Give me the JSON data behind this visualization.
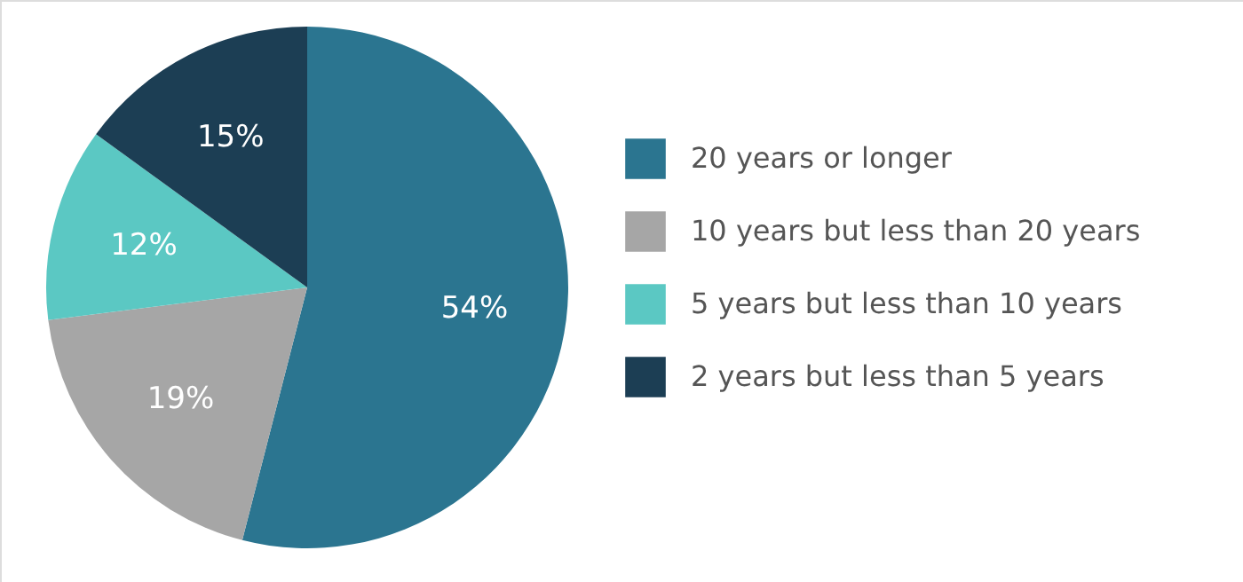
{
  "chart_data": {
    "type": "pie",
    "categories": [
      "20 years or longer",
      "10 years but less than 20 years",
      "5 years but less than 10 years",
      "2 years but less than 5 years"
    ],
    "values": [
      54,
      19,
      12,
      15
    ],
    "value_labels": [
      "54%",
      "19%",
      "12%",
      "15%"
    ],
    "colors": [
      "#2b7590",
      "#a6a6a6",
      "#5bc8c3",
      "#1c3e54"
    ],
    "legend": "right"
  }
}
